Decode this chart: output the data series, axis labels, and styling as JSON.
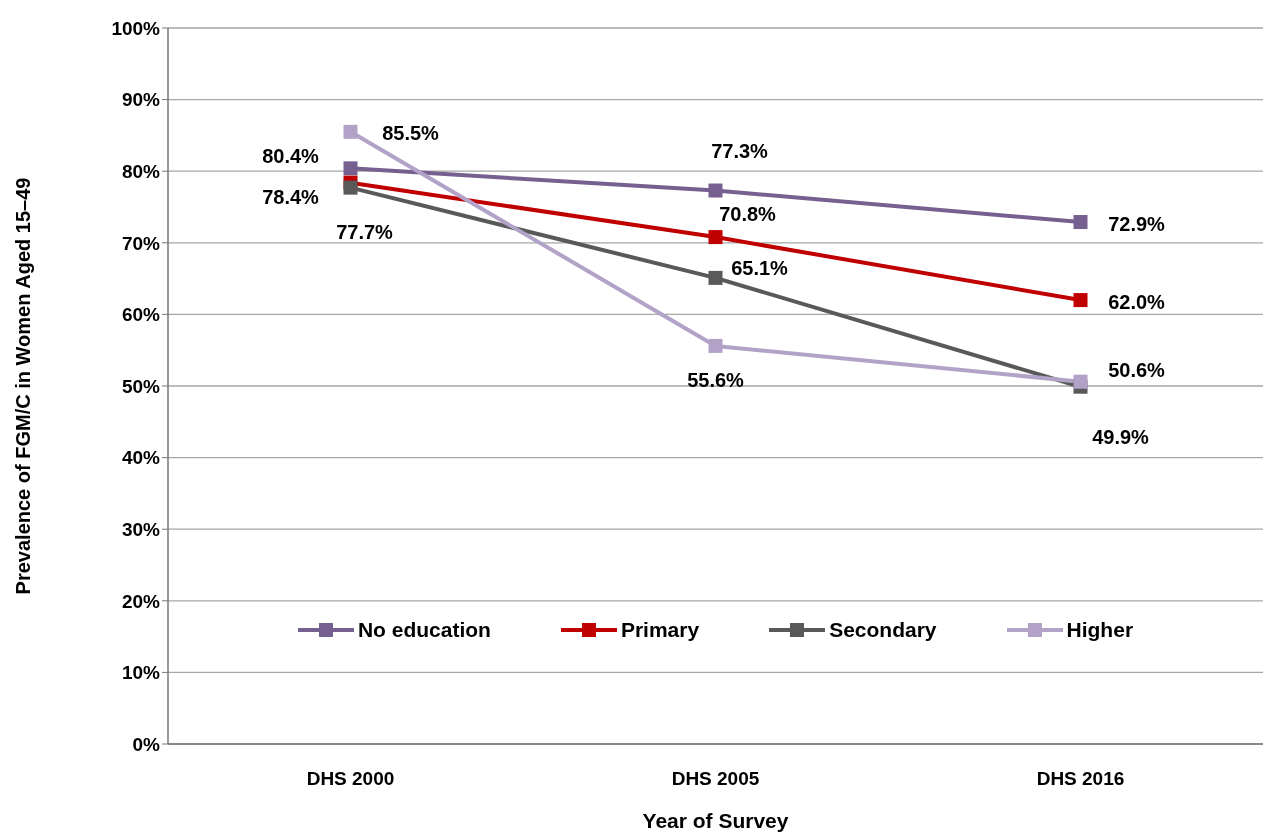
{
  "chart_data": {
    "type": "line",
    "xlabel": "Year of Survey",
    "ylabel": "Prevalence of FGM/C in Women Aged 15–49",
    "categories": [
      "DHS 2000",
      "DHS 2005",
      "DHS 2016"
    ],
    "series": [
      {
        "name": "No education",
        "color": "#76608f",
        "values": [
          80.4,
          77.3,
          72.9
        ],
        "value_labels": [
          "80.4%",
          "77.3%",
          "72.9%"
        ]
      },
      {
        "name": "Primary",
        "color": "#c00000",
        "values": [
          78.4,
          70.8,
          62.0
        ],
        "value_labels": [
          "78.4%",
          "70.8%",
          "62.0%"
        ]
      },
      {
        "name": "Secondary",
        "color": "#595959",
        "values": [
          77.7,
          65.1,
          49.9
        ],
        "value_labels": [
          "77.7%",
          "65.1%",
          "49.9%"
        ]
      },
      {
        "name": "Higher",
        "color": "#b3a2c7",
        "values": [
          85.5,
          55.6,
          50.6
        ],
        "value_labels": [
          "85.5%",
          "55.6%",
          "50.6%"
        ]
      }
    ],
    "ylim": [
      0,
      100
    ],
    "yticks": [
      {
        "value": 0,
        "label": "0%"
      },
      {
        "value": 10,
        "label": "10%"
      },
      {
        "value": 20,
        "label": "20%"
      },
      {
        "value": 30,
        "label": "30%"
      },
      {
        "value": 40,
        "label": "40%"
      },
      {
        "value": 50,
        "label": "50%"
      },
      {
        "value": 60,
        "label": "60%"
      },
      {
        "value": 70,
        "label": "70%"
      },
      {
        "value": 80,
        "label": "80%"
      },
      {
        "value": 90,
        "label": "90%"
      },
      {
        "value": 100,
        "label": "100%"
      }
    ],
    "grid": "y",
    "legend": "bottom",
    "marker": "square",
    "line_style": "solid"
  }
}
